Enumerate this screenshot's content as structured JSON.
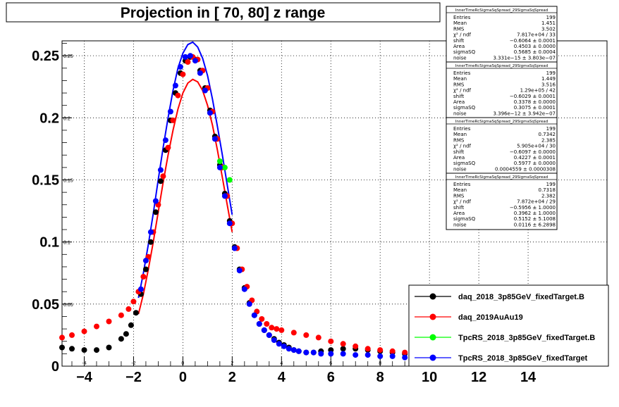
{
  "chart_data": {
    "type": "scatter",
    "title": "Projection in [  70,  80] z range",
    "xlabel": "",
    "ylabel": "",
    "xlim": [
      -4.9,
      17.2
    ],
    "ylim": [
      0,
      0.262
    ],
    "grid": true,
    "x_ticks": [
      "−4",
      "−2",
      "0",
      "2",
      "4",
      "6",
      "8",
      "10",
      "12",
      "14"
    ],
    "x_tick_values": [
      -4,
      -2,
      0,
      2,
      4,
      6,
      8,
      10,
      12,
      14
    ],
    "x_minor_labels": [
      "-4",
      "-2",
      "0",
      "2",
      "4",
      "6",
      "8",
      "10",
      "12",
      "14"
    ],
    "y_ticks": [
      "0",
      "0.05",
      "0.1",
      "0.15",
      "0.2",
      "0.25"
    ],
    "y_tick_values": [
      0,
      0.05,
      0.1,
      0.15,
      0.2,
      0.25
    ],
    "y_minor_labels": [
      "0.05",
      "0.1",
      "0.15",
      "0.2",
      "0.25"
    ],
    "legend_position": "bottom-right",
    "series": [
      {
        "name": "daq_2018_3p85GeV_fixedTarget.B",
        "color": "#000000",
        "x": [
          -4.9,
          -4.5,
          -4.0,
          -3.5,
          -3.0,
          -2.5,
          -2.3,
          -2.1,
          -1.9,
          -1.7,
          -1.5,
          -1.3,
          -1.1,
          -0.9,
          -0.7,
          -0.5,
          -0.3,
          -0.1,
          0.1,
          0.3,
          0.5,
          0.7,
          0.9,
          1.1,
          1.3,
          1.5,
          1.7,
          1.9,
          2.1,
          2.3,
          2.5,
          2.7,
          2.9,
          3.1,
          3.3,
          3.5,
          3.7,
          3.9,
          4.1,
          4.3,
          4.5,
          4.7,
          5.0,
          5.3,
          5.6,
          6.0,
          6.5,
          7.0,
          7.5,
          8.0,
          8.5,
          9.0
        ],
        "y": [
          0.015,
          0.014,
          0.013,
          0.013,
          0.015,
          0.022,
          0.026,
          0.033,
          0.043,
          0.058,
          0.078,
          0.1,
          0.124,
          0.149,
          0.174,
          0.198,
          0.22,
          0.236,
          0.246,
          0.249,
          0.247,
          0.238,
          0.224,
          0.206,
          0.185,
          0.162,
          0.139,
          0.117,
          0.096,
          0.078,
          0.063,
          0.051,
          0.041,
          0.034,
          0.029,
          0.025,
          0.022,
          0.019,
          0.017,
          0.015,
          0.013,
          0.012,
          0.011,
          0.011,
          0.012,
          0.013,
          0.014,
          0.014,
          0.013,
          0.012,
          0.011,
          0.01
        ]
      },
      {
        "name": "daq_2019AuAu19",
        "color": "#ff0000",
        "x": [
          -4.9,
          -4.5,
          -4.0,
          -3.5,
          -3.0,
          -2.5,
          -2.2,
          -2.0,
          -1.8,
          -1.6,
          -1.4,
          -1.2,
          -1.0,
          -0.8,
          -0.6,
          -0.4,
          -0.2,
          0.0,
          0.2,
          0.4,
          0.6,
          0.8,
          1.0,
          1.2,
          1.4,
          1.6,
          1.8,
          2.0,
          2.2,
          2.4,
          2.6,
          2.8,
          3.0,
          3.2,
          3.4,
          3.6,
          3.8,
          4.0,
          4.5,
          5.0,
          5.5,
          6.0,
          6.5,
          7.0,
          7.5,
          8.0,
          8.5,
          9.0
        ],
        "y": [
          0.023,
          0.025,
          0.028,
          0.032,
          0.036,
          0.041,
          0.046,
          0.052,
          0.06,
          0.072,
          0.088,
          0.108,
          0.13,
          0.153,
          0.176,
          0.198,
          0.218,
          0.235,
          0.245,
          0.249,
          0.247,
          0.238,
          0.224,
          0.205,
          0.183,
          0.16,
          0.137,
          0.115,
          0.095,
          0.078,
          0.064,
          0.053,
          0.044,
          0.038,
          0.034,
          0.031,
          0.03,
          0.029,
          0.027,
          0.025,
          0.023,
          0.02,
          0.018,
          0.016,
          0.014,
          0.013,
          0.012,
          0.011
        ]
      },
      {
        "name": "TpcRS_2018_3p85GeV_fixedTarget.B",
        "color": "#00ff00",
        "x": [
          1.5,
          1.7,
          1.9
        ],
        "y": [
          0.165,
          0.16,
          0.15
        ]
      },
      {
        "name": "TpcRS_2018_3p85GeV_fixedTarget",
        "color": "#0000ff",
        "x": [
          -1.7,
          -1.5,
          -1.3,
          -1.1,
          -0.9,
          -0.7,
          -0.5,
          -0.3,
          -0.1,
          0.1,
          0.3,
          0.5,
          0.7,
          0.9,
          1.1,
          1.3,
          1.5,
          1.7,
          1.9,
          2.1,
          2.3,
          2.5,
          2.7,
          2.9,
          3.1,
          3.3,
          3.5,
          3.7,
          3.9,
          4.1,
          4.3,
          4.5,
          4.7,
          5.0,
          5.3,
          5.6,
          6.0,
          6.5,
          7.0,
          7.5,
          8.0,
          8.5,
          9.0
        ],
        "y": [
          0.062,
          0.085,
          0.108,
          0.133,
          0.158,
          0.182,
          0.205,
          0.226,
          0.241,
          0.249,
          0.25,
          0.246,
          0.236,
          0.222,
          0.204,
          0.183,
          0.16,
          0.137,
          0.115,
          0.095,
          0.077,
          0.062,
          0.05,
          0.041,
          0.034,
          0.029,
          0.025,
          0.021,
          0.018,
          0.016,
          0.014,
          0.013,
          0.012,
          0.011,
          0.011,
          0.01,
          0.01,
          0.01,
          0.009,
          0.009,
          0.008,
          0.008,
          0.007
        ]
      }
    ],
    "fits": [
      {
        "color": "#ff0000",
        "x": [
          -1.8,
          -1.6,
          -1.4,
          -1.2,
          -1.0,
          -0.8,
          -0.6,
          -0.4,
          -0.2,
          0.0,
          0.2,
          0.4,
          0.6,
          0.8,
          1.0,
          1.2,
          1.4,
          1.6,
          1.8,
          2.0
        ],
        "y": [
          0.042,
          0.058,
          0.078,
          0.1,
          0.124,
          0.148,
          0.17,
          0.19,
          0.207,
          0.22,
          0.228,
          0.231,
          0.229,
          0.222,
          0.21,
          0.194,
          0.174,
          0.152,
          0.13,
          0.108
        ]
      },
      {
        "color": "#0000ff",
        "x": [
          -1.8,
          -1.6,
          -1.4,
          -1.2,
          -1.0,
          -0.8,
          -0.6,
          -0.4,
          -0.2,
          0.0,
          0.2,
          0.4,
          0.6,
          0.8,
          1.0,
          1.2,
          1.4,
          1.6,
          1.8,
          2.0
        ],
        "y": [
          0.055,
          0.075,
          0.098,
          0.123,
          0.15,
          0.176,
          0.2,
          0.222,
          0.24,
          0.252,
          0.259,
          0.261,
          0.257,
          0.248,
          0.234,
          0.215,
          0.193,
          0.17,
          0.146,
          0.122
        ]
      }
    ],
    "stat_boxes": [
      {
        "title": "InnerTimeRcSigmaSqSpread_29SigmaSqSpread",
        "rows": [
          [
            "Entries",
            "199"
          ],
          [
            "Mean",
            "1.451"
          ],
          [
            "RMS",
            "3.502"
          ],
          [
            "χ² / ndf",
            "7.817e+04 / 33"
          ],
          [
            "shift",
            "−0.6064 ± 0.0001"
          ],
          [
            "Area",
            "0.4503 ± 0.0000"
          ],
          [
            "sigmaSQ",
            "0.5685 ± 0.0004"
          ],
          [
            "noise",
            "3.331e−15 ± 3.803e−07"
          ]
        ]
      },
      {
        "title": "InnerTimeRcSigmaSqSpread_29SigmaSqSpread",
        "rows": [
          [
            "Entries",
            "199"
          ],
          [
            "Mean",
            "1.449"
          ],
          [
            "RMS",
            "3.516"
          ],
          [
            "χ² / ndf",
            "1.29e+05 / 42"
          ],
          [
            "shift",
            "−0.6029 ± 0.0001"
          ],
          [
            "Area",
            "0.3378 ± 0.0000"
          ],
          [
            "sigmaSQ",
            "0.3075 ± 0.0001"
          ],
          [
            "noise",
            "3.396e−12 ± 3.942e−07"
          ]
        ]
      },
      {
        "title": "InnerTimeRcSigmaSqSpread_29SigmaSqSpread",
        "rows": [
          [
            "Entries",
            "199"
          ],
          [
            "Mean",
            "0.7342"
          ],
          [
            "RMS",
            "2.385"
          ],
          [
            "χ² / ndf",
            "5.905e+04 / 30"
          ],
          [
            "shift",
            "−0.6097 ± 0.0000"
          ],
          [
            "Area",
            "0.4227 ± 0.0001"
          ],
          [
            "sigmaSQ",
            "0.5977 ± 0.0000"
          ],
          [
            "noise",
            "0.0004559 ± 0.0000308"
          ]
        ]
      },
      {
        "title": "InnerTimeRcSigmaSqSpread_29SigmaSqSpread",
        "rows": [
          [
            "Entries",
            "199"
          ],
          [
            "Mean",
            "0.7318"
          ],
          [
            "RMS",
            "2.382"
          ],
          [
            "χ² / ndf",
            "7.872e+04 / 29"
          ],
          [
            "shift",
            "−0.5956 ± 1.0000"
          ],
          [
            "Area",
            "0.3962 ± 1.0000"
          ],
          [
            "sigmaSQ",
            "0.5152 ± 5.1008"
          ],
          [
            "noise",
            "0.0116 ± 6.2898"
          ]
        ]
      }
    ]
  }
}
